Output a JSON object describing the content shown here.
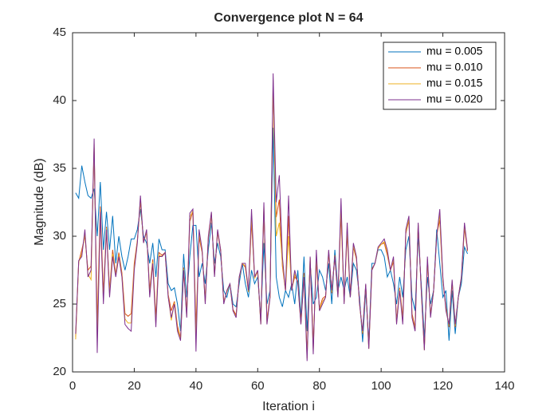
{
  "chart_data": {
    "type": "line",
    "title": "Convergence plot N = 64",
    "x_label": "Iteration i",
    "y_label": "Magnitude (dB)",
    "x": [
      1,
      2,
      3,
      4,
      5,
      6,
      7,
      8,
      9,
      10,
      11,
      12,
      13,
      14,
      15,
      16,
      17,
      18,
      19,
      20,
      21,
      22,
      23,
      24,
      25,
      26,
      27,
      28,
      29,
      30,
      31,
      32,
      33,
      34,
      35,
      36,
      37,
      38,
      39,
      40,
      41,
      42,
      43,
      44,
      45,
      46,
      47,
      48,
      49,
      50,
      51,
      52,
      53,
      54,
      55,
      56,
      57,
      58,
      59,
      60,
      61,
      62,
      63,
      64,
      65,
      66,
      67,
      68,
      69,
      70,
      71,
      72,
      73,
      74,
      75,
      76,
      77,
      78,
      79,
      80,
      81,
      82,
      83,
      84,
      85,
      86,
      87,
      88,
      89,
      90,
      91,
      92,
      93,
      94,
      95,
      96,
      97,
      98,
      99,
      100,
      101,
      102,
      103,
      104,
      105,
      106,
      107,
      108,
      109,
      110,
      111,
      112,
      113,
      114,
      115,
      116,
      117,
      118,
      119,
      120,
      121,
      122,
      123,
      124,
      125,
      126,
      127,
      128
    ],
    "series": [
      {
        "name": "mu = 0.005",
        "color": "#0072BD",
        "values": [
          33.2,
          32.8,
          35.2,
          34,
          33,
          32.8,
          33.5,
          30,
          34,
          29,
          31.8,
          29,
          31.5,
          28,
          30,
          28.5,
          27.5,
          28.5,
          29.8,
          29.8,
          30.5,
          32,
          30,
          29.5,
          28,
          29.5,
          27,
          29.8,
          29,
          29,
          26.5,
          26,
          26.2,
          25,
          23,
          28.7,
          25.5,
          28.5,
          30.8,
          30.8,
          27,
          28,
          26.5,
          29,
          31,
          28,
          29.5,
          28.5,
          26,
          25.5,
          26.5,
          25,
          24.8,
          26.5,
          28,
          26.5,
          25.5,
          27.5,
          26.5,
          27,
          24,
          29.5,
          25,
          26,
          38,
          27,
          25.5,
          24.8,
          26,
          25.5,
          26.5,
          25,
          27.5,
          24,
          28.5,
          23,
          28,
          25,
          25.5,
          27.5,
          27,
          26,
          28,
          25,
          29,
          26,
          27,
          26,
          27,
          25.5,
          28,
          27.5,
          25.5,
          22.2,
          26,
          22.2,
          28,
          28,
          29,
          29,
          28.5,
          27,
          27.5,
          26.5,
          25,
          27,
          25.5,
          29,
          30,
          25.5,
          24.5,
          30,
          26.5,
          22.5,
          27,
          25,
          26,
          30.5,
          28,
          25.5,
          26,
          22.3,
          26,
          22.8,
          25.5,
          26.5,
          29.2,
          28.7
        ]
      },
      {
        "name": "mu = 0.010",
        "color": "#D95319",
        "values": [
          22.6,
          28.1,
          29,
          30,
          27.5,
          27.8,
          36.5,
          23.5,
          32.2,
          25.8,
          30.7,
          26,
          29,
          27.2,
          28.8,
          27.3,
          24.3,
          24.1,
          24.3,
          28,
          29.7,
          32.6,
          29.6,
          30.3,
          26,
          28.3,
          24,
          28.8,
          28.6,
          28.8,
          25.7,
          24.5,
          25.2,
          23.4,
          22.5,
          27.7,
          24.3,
          31.1,
          31.8,
          23.3,
          29.9,
          28.8,
          25.3,
          29.8,
          31.6,
          27.2,
          30.3,
          28.9,
          25.2,
          25.9,
          26.5,
          24.6,
          24.2,
          26.9,
          28,
          27.7,
          25.9,
          31.1,
          26.9,
          27.4,
          23.6,
          31.9,
          23.8,
          25.6,
          41,
          31.4,
          32.7,
          27.8,
          26,
          31.5,
          26.1,
          27,
          26.7,
          23.6,
          27.3,
          21.3,
          28.4,
          22,
          28.2,
          24.7,
          25.4,
          25.6,
          28.8,
          25.8,
          28.6,
          25.6,
          31.6,
          25.2,
          30.2,
          25.5,
          29.2,
          28.3,
          25.1,
          22.8,
          26.4,
          21.8,
          27.6,
          28,
          29.1,
          29.4,
          29.5,
          28.6,
          27.5,
          28.1,
          23.8,
          26.2,
          24,
          30.2,
          31.2,
          24.3,
          23.3,
          30.8,
          26.1,
          21.7,
          28.2,
          24.2,
          26,
          30.1,
          31.2,
          26.7,
          24.8,
          23.3,
          26.6,
          23.3,
          25.5,
          26.9,
          30.6,
          28.9
        ]
      },
      {
        "name": "mu = 0.015",
        "color": "#EDB120",
        "values": [
          22.4,
          28.1,
          28.7,
          30.2,
          27.2,
          26.8,
          36.8,
          22.5,
          31.5,
          25.4,
          30.6,
          25.8,
          28.7,
          27.1,
          28.6,
          27.1,
          23.9,
          23.6,
          23.6,
          27.7,
          29.6,
          32.8,
          29.5,
          30.4,
          25.7,
          28.1,
          23.6,
          28.6,
          28.5,
          28.8,
          25.6,
          23.8,
          25.1,
          23.2,
          22.4,
          27.6,
          24.1,
          31.4,
          31.9,
          22.4,
          30.2,
          28.9,
          25.1,
          29.9,
          31.7,
          27.1,
          30.4,
          29,
          25.1,
          25.9,
          26.5,
          24.5,
          24.1,
          26.9,
          28,
          27.8,
          25.9,
          31.5,
          26.9,
          27.4,
          23.5,
          32.2,
          23.6,
          25.5,
          41.5,
          30,
          31,
          28,
          26,
          30,
          26,
          27.2,
          26.6,
          23.5,
          27.1,
          21,
          28.4,
          21.6,
          28.6,
          24.6,
          25.2,
          25.5,
          28.9,
          25.9,
          28.5,
          25.5,
          32.2,
          25.1,
          30.6,
          25.5,
          29.3,
          28.4,
          25,
          22.9,
          26.4,
          21.7,
          27.5,
          28,
          29.1,
          29.4,
          29.6,
          28.8,
          27.5,
          28.3,
          23.6,
          26.1,
          23.7,
          30.3,
          31.3,
          24.1,
          23.1,
          30.9,
          26,
          21.6,
          28.3,
          24.1,
          26,
          30,
          31.6,
          26.8,
          24.6,
          23.4,
          26.7,
          23.4,
          25.5,
          27,
          30.8,
          29
        ]
      },
      {
        "name": "mu = 0.020",
        "color": "#7E2F8E",
        "values": [
          22.8,
          28.2,
          28.5,
          30.5,
          27,
          27.5,
          37.2,
          21.4,
          31.8,
          25,
          30.5,
          25.5,
          28.5,
          27,
          28.5,
          27,
          23.5,
          23.2,
          23,
          27.5,
          29.5,
          33,
          29.5,
          30.5,
          25.5,
          28,
          23.3,
          28.5,
          28.5,
          28.8,
          25.5,
          24,
          25,
          23,
          22.3,
          27.5,
          24,
          31.7,
          32,
          21.5,
          30.5,
          29,
          25,
          30,
          31.8,
          27,
          30.5,
          29,
          25,
          26,
          26.5,
          24.5,
          24,
          27,
          28,
          28,
          26,
          32,
          27,
          27.5,
          23.5,
          32.5,
          23.5,
          25.5,
          42,
          32.5,
          34.5,
          28.5,
          26,
          33,
          26,
          27.5,
          26.5,
          23.5,
          27,
          20.8,
          28.5,
          21.3,
          29,
          24.5,
          25,
          25.5,
          29,
          26,
          28.5,
          25.5,
          32.8,
          25,
          31,
          25.5,
          29.5,
          28.5,
          25,
          23,
          26.5,
          21.7,
          27.5,
          28,
          29.2,
          29.5,
          29.8,
          29,
          27.5,
          28.5,
          23.5,
          26,
          23.5,
          30.5,
          31.5,
          24,
          23,
          31,
          26,
          21.6,
          28.5,
          24,
          26,
          30,
          32,
          27,
          24.5,
          23.5,
          26.8,
          23.5,
          25.5,
          27,
          31,
          29
        ]
      }
    ],
    "xlim": [
      0,
      140
    ],
    "xticks": [
      0,
      20,
      40,
      60,
      80,
      100,
      120,
      140
    ],
    "ylim": [
      20,
      45
    ],
    "yticks": [
      20,
      25,
      30,
      35,
      40,
      45
    ],
    "legend": "northeast"
  }
}
